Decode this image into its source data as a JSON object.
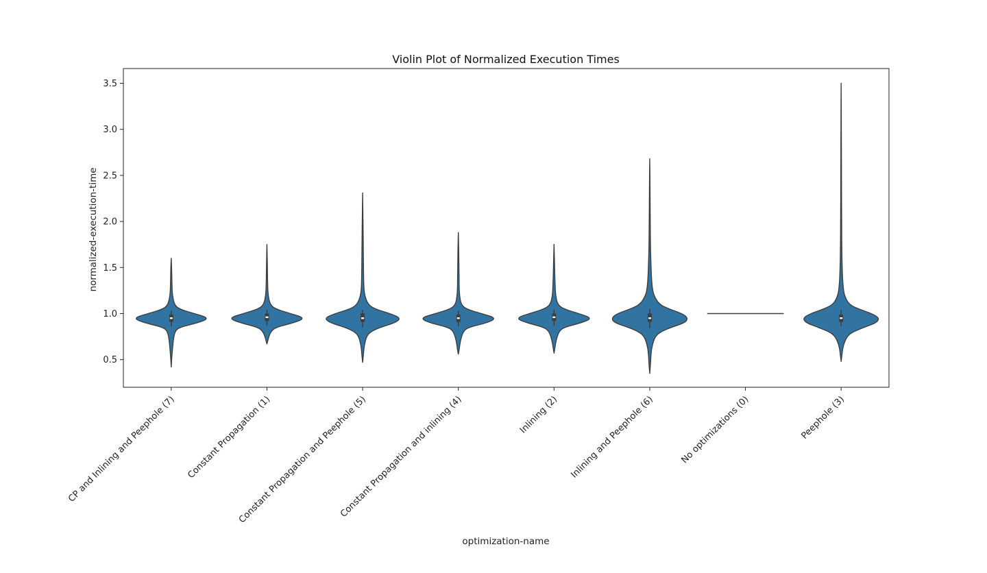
{
  "chart_data": {
    "type": "violin",
    "title": "Violin Plot of Normalized Execution Times",
    "xlabel": "optimization-name",
    "ylabel": "normalized-execution-time",
    "ylim": [
      0.2,
      3.66
    ],
    "yticks": [
      0.5,
      1.0,
      1.5,
      2.0,
      2.5,
      3.0,
      3.5
    ],
    "ytick_labels": [
      "0.5",
      "1.0",
      "1.5",
      "2.0",
      "2.5",
      "3.0",
      "3.5"
    ],
    "grid": false,
    "fill_color": "#3274a1",
    "edge_color": "#3d3d3d",
    "categories": [
      "CP and Inlining and Peephole (7)",
      "Constant Propagation (1)",
      "Constant Propagation and Peephole (5)",
      "Constant Propagation and inlining (4)",
      "Inlining (2)",
      "Inlining and Peephole (6)",
      "No optimizations (0)",
      "Peephole (3)"
    ],
    "series": [
      {
        "category": "CP and Inlining and Peephole (7)",
        "min": 0.42,
        "max": 1.6,
        "q1": 0.91,
        "median": 0.95,
        "q3": 0.99,
        "whisker_low": 0.86,
        "whisker_high": 1.03,
        "density": [
          [
            0.42,
            0.0
          ],
          [
            0.5,
            0.01
          ],
          [
            0.6,
            0.03
          ],
          [
            0.7,
            0.05
          ],
          [
            0.8,
            0.09
          ],
          [
            0.85,
            0.2
          ],
          [
            0.9,
            0.7
          ],
          [
            0.95,
            1.0
          ],
          [
            1.0,
            0.6
          ],
          [
            1.05,
            0.2
          ],
          [
            1.1,
            0.08
          ],
          [
            1.2,
            0.03
          ],
          [
            1.3,
            0.02
          ],
          [
            1.4,
            0.015
          ],
          [
            1.5,
            0.01
          ],
          [
            1.6,
            0.0
          ]
        ]
      },
      {
        "category": "Constant Propagation (1)",
        "min": 0.67,
        "max": 1.75,
        "q1": 0.92,
        "median": 0.96,
        "q3": 1.0,
        "whisker_low": 0.87,
        "whisker_high": 1.04,
        "density": [
          [
            0.67,
            0.0
          ],
          [
            0.7,
            0.02
          ],
          [
            0.75,
            0.05
          ],
          [
            0.8,
            0.1
          ],
          [
            0.85,
            0.22
          ],
          [
            0.9,
            0.7
          ],
          [
            0.95,
            1.0
          ],
          [
            1.0,
            0.62
          ],
          [
            1.05,
            0.22
          ],
          [
            1.1,
            0.08
          ],
          [
            1.2,
            0.03
          ],
          [
            1.3,
            0.02
          ],
          [
            1.4,
            0.015
          ],
          [
            1.5,
            0.012
          ],
          [
            1.6,
            0.008
          ],
          [
            1.75,
            0.0
          ]
        ]
      },
      {
        "category": "Constant Propagation and Peephole (5)",
        "min": 0.47,
        "max": 2.31,
        "q1": 0.91,
        "median": 0.95,
        "q3": 1.0,
        "whisker_low": 0.85,
        "whisker_high": 1.04,
        "density": [
          [
            0.47,
            0.0
          ],
          [
            0.55,
            0.02
          ],
          [
            0.65,
            0.04
          ],
          [
            0.75,
            0.1
          ],
          [
            0.8,
            0.2
          ],
          [
            0.85,
            0.45
          ],
          [
            0.9,
            0.85
          ],
          [
            0.95,
            1.0
          ],
          [
            1.0,
            0.72
          ],
          [
            1.05,
            0.32
          ],
          [
            1.1,
            0.14
          ],
          [
            1.2,
            0.05
          ],
          [
            1.3,
            0.03
          ],
          [
            1.4,
            0.025
          ],
          [
            1.6,
            0.02
          ],
          [
            1.8,
            0.015
          ],
          [
            2.0,
            0.01
          ],
          [
            2.31,
            0.0
          ]
        ]
      },
      {
        "category": "Constant Propagation and inlining (4)",
        "min": 0.56,
        "max": 1.88,
        "q1": 0.91,
        "median": 0.95,
        "q3": 0.99,
        "whisker_low": 0.86,
        "whisker_high": 1.03,
        "density": [
          [
            0.56,
            0.0
          ],
          [
            0.6,
            0.02
          ],
          [
            0.7,
            0.05
          ],
          [
            0.8,
            0.12
          ],
          [
            0.85,
            0.25
          ],
          [
            0.9,
            0.75
          ],
          [
            0.95,
            1.0
          ],
          [
            1.0,
            0.6
          ],
          [
            1.05,
            0.2
          ],
          [
            1.1,
            0.07
          ],
          [
            1.2,
            0.03
          ],
          [
            1.3,
            0.02
          ],
          [
            1.4,
            0.02
          ],
          [
            1.5,
            0.015
          ],
          [
            1.7,
            0.01
          ],
          [
            1.88,
            0.0
          ]
        ]
      },
      {
        "category": "Inlining (2)",
        "min": 0.57,
        "max": 1.75,
        "q1": 0.92,
        "median": 0.96,
        "q3": 1.0,
        "whisker_low": 0.87,
        "whisker_high": 1.04,
        "density": [
          [
            0.57,
            0.0
          ],
          [
            0.62,
            0.02
          ],
          [
            0.7,
            0.05
          ],
          [
            0.8,
            0.12
          ],
          [
            0.85,
            0.25
          ],
          [
            0.9,
            0.72
          ],
          [
            0.95,
            1.0
          ],
          [
            1.0,
            0.65
          ],
          [
            1.05,
            0.25
          ],
          [
            1.1,
            0.09
          ],
          [
            1.2,
            0.04
          ],
          [
            1.3,
            0.03
          ],
          [
            1.4,
            0.02
          ],
          [
            1.5,
            0.015
          ],
          [
            1.6,
            0.01
          ],
          [
            1.75,
            0.0
          ]
        ]
      },
      {
        "category": "Inlining and Peephole (6)",
        "min": 0.35,
        "max": 2.68,
        "q1": 0.91,
        "median": 0.95,
        "q3": 1.0,
        "whisker_low": 0.84,
        "whisker_high": 1.05,
        "density": [
          [
            0.35,
            0.0
          ],
          [
            0.45,
            0.02
          ],
          [
            0.55,
            0.03
          ],
          [
            0.65,
            0.06
          ],
          [
            0.75,
            0.14
          ],
          [
            0.8,
            0.28
          ],
          [
            0.85,
            0.55
          ],
          [
            0.9,
            0.92
          ],
          [
            0.95,
            1.0
          ],
          [
            1.0,
            0.85
          ],
          [
            1.05,
            0.5
          ],
          [
            1.1,
            0.25
          ],
          [
            1.2,
            0.1
          ],
          [
            1.3,
            0.06
          ],
          [
            1.4,
            0.045
          ],
          [
            1.5,
            0.035
          ],
          [
            1.7,
            0.02
          ],
          [
            2.0,
            0.012
          ],
          [
            2.4,
            0.008
          ],
          [
            2.68,
            0.0
          ]
        ]
      },
      {
        "category": "No optimizations (0)",
        "min": 1.0,
        "max": 1.0,
        "q1": 1.0,
        "median": 1.0,
        "q3": 1.0,
        "whisker_low": 1.0,
        "whisker_high": 1.0,
        "density": []
      },
      {
        "category": "Peephole (3)",
        "min": 0.48,
        "max": 3.5,
        "q1": 0.91,
        "median": 0.95,
        "q3": 0.99,
        "whisker_low": 0.86,
        "whisker_high": 1.04,
        "density": [
          [
            0.48,
            0.0
          ],
          [
            0.55,
            0.02
          ],
          [
            0.65,
            0.05
          ],
          [
            0.75,
            0.15
          ],
          [
            0.8,
            0.3
          ],
          [
            0.85,
            0.6
          ],
          [
            0.9,
            0.92
          ],
          [
            0.95,
            1.0
          ],
          [
            1.0,
            0.8
          ],
          [
            1.05,
            0.45
          ],
          [
            1.1,
            0.2
          ],
          [
            1.2,
            0.08
          ],
          [
            1.3,
            0.05
          ],
          [
            1.4,
            0.035
          ],
          [
            1.6,
            0.02
          ],
          [
            2.0,
            0.012
          ],
          [
            2.5,
            0.008
          ],
          [
            3.0,
            0.006
          ],
          [
            3.5,
            0.0
          ]
        ]
      }
    ]
  }
}
